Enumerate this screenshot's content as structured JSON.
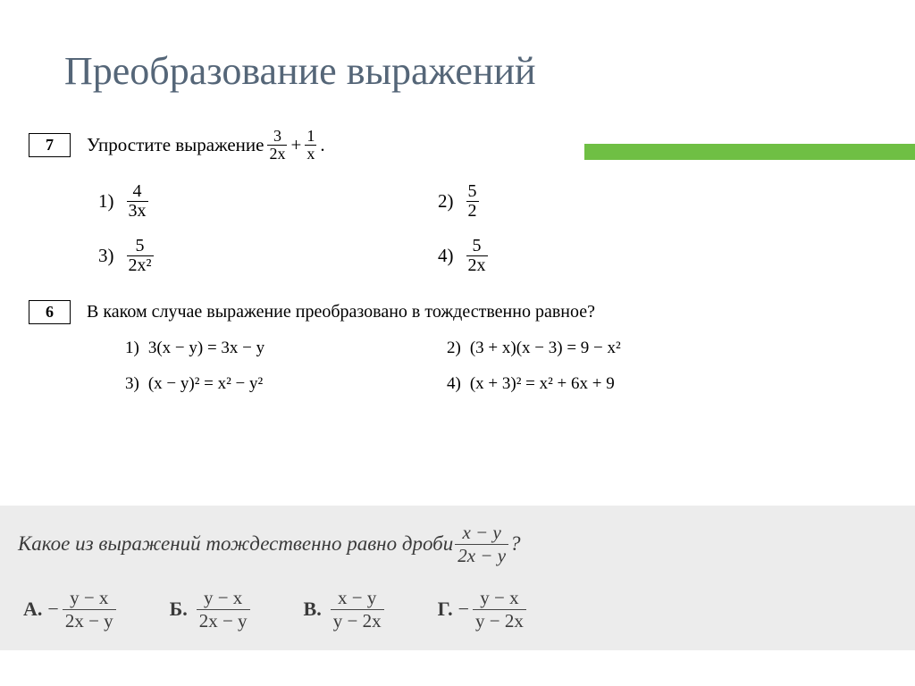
{
  "title": "Преобразование выражений",
  "colors": {
    "title": "#556678",
    "accent_bar": "#6fbf44",
    "scanned_bg": "#ececec",
    "text": "#000000",
    "scanned_text": "#3a3a3a"
  },
  "problem7": {
    "number": "7",
    "prompt_prefix": "Упростите выражение ",
    "expr_frac1_num": "3",
    "expr_frac1_den": "2x",
    "expr_plus": "+",
    "expr_frac2_num": "1",
    "expr_frac2_den": "x",
    "period": ".",
    "options": [
      {
        "label": "1)",
        "num": "4",
        "den": "3x"
      },
      {
        "label": "2)",
        "num": "5",
        "den": "2"
      },
      {
        "label": "3)",
        "num": "5",
        "den": "2x²"
      },
      {
        "label": "4)",
        "num": "5",
        "den": "2x"
      }
    ]
  },
  "problem6": {
    "number": "6",
    "prompt": "В каком случае выражение преобразовано в тождественно равное?",
    "options": [
      {
        "label": "1)",
        "expr": "3(x − y) = 3x − y"
      },
      {
        "label": "2)",
        "expr": "(3 + x)(x − 3) = 9 − x²"
      },
      {
        "label": "3)",
        "expr": "(x − y)² = x² − y²"
      },
      {
        "label": "4)",
        "expr": "(x + 3)² = x² + 6x + 9"
      }
    ]
  },
  "scanned_problem": {
    "prompt_prefix": "Какое из выражений тождественно равно дроби ",
    "prompt_frac_num": "x − y",
    "prompt_frac_den": "2x − y",
    "qmark": "?",
    "answers": [
      {
        "letter": "А.",
        "sign": "−",
        "num": "y − x",
        "den": "2x − y"
      },
      {
        "letter": "Б.",
        "sign": "",
        "num": "y − x",
        "den": "2x − y"
      },
      {
        "letter": "В.",
        "sign": "",
        "num": "x − y",
        "den": "y − 2x"
      },
      {
        "letter": "Г.",
        "sign": "−",
        "num": "y − x",
        "den": "y − 2x"
      }
    ]
  }
}
